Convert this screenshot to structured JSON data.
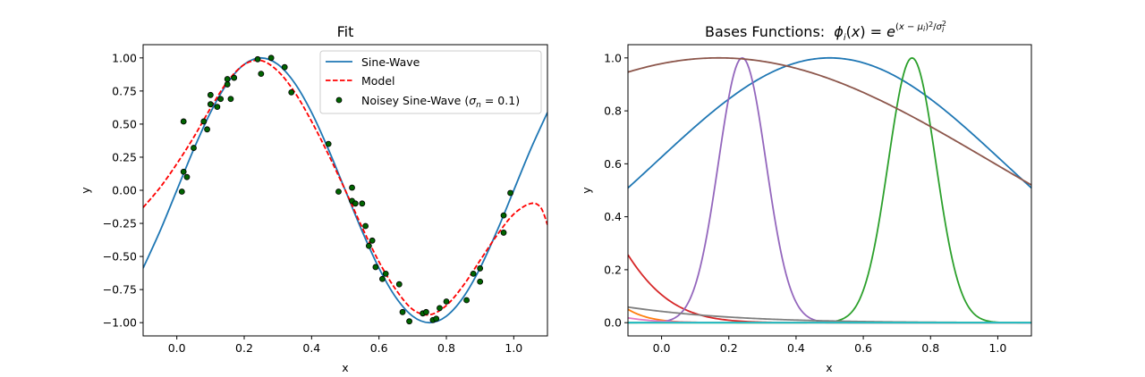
{
  "chart_data": [
    {
      "type": "line",
      "title": "Fit",
      "xlabel": "x",
      "ylabel": "y",
      "xlim": [
        -0.1,
        1.1
      ],
      "ylim": [
        -1.1,
        1.1
      ],
      "xticks": [
        0.0,
        0.2,
        0.4,
        0.6,
        0.8,
        1.0
      ],
      "xtick_labels": [
        "0.0",
        "0.2",
        "0.4",
        "0.6",
        "0.8",
        "1.0"
      ],
      "yticks": [
        -1.0,
        -0.75,
        -0.5,
        -0.25,
        0.0,
        0.25,
        0.5,
        0.75,
        1.0
      ],
      "ytick_labels": [
        "−1.00",
        "−0.75",
        "−0.50",
        "−0.25",
        "0.00",
        "0.25",
        "0.50",
        "0.75",
        "1.00"
      ],
      "legend_position": "top-right",
      "grid": false,
      "series": [
        {
          "name": "Sine-Wave",
          "kind": "line",
          "color": "#1f77b4",
          "x": [
            -0.1,
            -0.05,
            0.0,
            0.05,
            0.1,
            0.15,
            0.2,
            0.25,
            0.3,
            0.35,
            0.4,
            0.45,
            0.5,
            0.55,
            0.6,
            0.65,
            0.7,
            0.75,
            0.8,
            0.85,
            0.9,
            0.95,
            1.0,
            1.05,
            1.1
          ],
          "y": [
            -0.588,
            -0.309,
            0.0,
            0.309,
            0.588,
            0.809,
            0.951,
            1.0,
            0.951,
            0.809,
            0.588,
            0.309,
            0.0,
            -0.309,
            -0.588,
            -0.809,
            -0.951,
            -1.0,
            -0.951,
            -0.809,
            -0.588,
            -0.309,
            0.0,
            0.309,
            0.588
          ]
        },
        {
          "name": "Model",
          "kind": "dashed-line",
          "color": "#ff0000",
          "x": [
            -0.1,
            -0.05,
            0.0,
            0.05,
            0.1,
            0.15,
            0.2,
            0.25,
            0.3,
            0.35,
            0.4,
            0.45,
            0.5,
            0.55,
            0.6,
            0.65,
            0.7,
            0.75,
            0.8,
            0.85,
            0.9,
            0.95,
            1.0,
            1.05,
            1.08,
            1.1
          ],
          "y": [
            -0.13,
            0.02,
            0.2,
            0.4,
            0.62,
            0.82,
            0.95,
            0.98,
            0.9,
            0.74,
            0.52,
            0.27,
            0.0,
            -0.28,
            -0.54,
            -0.75,
            -0.9,
            -0.94,
            -0.87,
            -0.72,
            -0.53,
            -0.34,
            -0.18,
            -0.1,
            -0.13,
            -0.26
          ]
        },
        {
          "name": "Noisey Sine-Wave (σ_n = 0.1)",
          "kind": "scatter",
          "color": "#006400",
          "edgecolor": "#000000",
          "x": [
            0.015,
            0.02,
            0.02,
            0.03,
            0.05,
            0.08,
            0.09,
            0.1,
            0.1,
            0.12,
            0.13,
            0.15,
            0.15,
            0.16,
            0.17,
            0.24,
            0.25,
            0.28,
            0.32,
            0.34,
            0.45,
            0.48,
            0.52,
            0.52,
            0.53,
            0.55,
            0.56,
            0.57,
            0.58,
            0.59,
            0.61,
            0.62,
            0.66,
            0.67,
            0.69,
            0.73,
            0.74,
            0.76,
            0.77,
            0.78,
            0.8,
            0.86,
            0.88,
            0.9,
            0.9,
            0.97,
            0.97,
            0.99
          ],
          "y": [
            -0.01,
            0.52,
            0.14,
            0.1,
            0.32,
            0.52,
            0.46,
            0.72,
            0.65,
            0.63,
            0.69,
            0.8,
            0.84,
            0.69,
            0.85,
            0.99,
            0.88,
            1.0,
            0.93,
            0.74,
            0.35,
            -0.01,
            -0.08,
            0.02,
            -0.1,
            -0.1,
            -0.27,
            -0.42,
            -0.38,
            -0.58,
            -0.67,
            -0.63,
            -0.71,
            -0.92,
            -0.99,
            -0.93,
            -0.92,
            -0.98,
            -0.97,
            -0.89,
            -0.84,
            -0.83,
            -0.63,
            -0.59,
            -0.69,
            -0.19,
            -0.32,
            -0.02
          ]
        }
      ]
    },
    {
      "type": "line",
      "title": "Bases Functions:",
      "formula": {
        "phi": "ϕ",
        "i": "i",
        "x": "(x) = e",
        "exp": "(x − μ",
        "exp_i": "i",
        "exp2": ")",
        "exp_sq": "2",
        "exp3": "/σ",
        "exp_sq2": "2",
        "exp_i2": "i"
      },
      "xlabel": "x",
      "ylabel": "y",
      "xlim": [
        -0.1,
        1.1
      ],
      "ylim": [
        -0.05,
        1.05
      ],
      "xticks": [
        0.0,
        0.2,
        0.4,
        0.6,
        0.8,
        1.0
      ],
      "xtick_labels": [
        "0.0",
        "0.2",
        "0.4",
        "0.6",
        "0.8",
        "1.0"
      ],
      "yticks": [
        0.0,
        0.2,
        0.4,
        0.6,
        0.8,
        1.0
      ],
      "ytick_labels": [
        "0.0",
        "0.2",
        "0.4",
        "0.6",
        "0.8",
        "1.0"
      ],
      "grid": false,
      "series": [
        {
          "color": "#1f77b4",
          "mu": 0.5,
          "sigma": 0.73
        },
        {
          "color": "#ff7f0e",
          "mu": -0.5,
          "sigma": 0.2315
        },
        {
          "color": "#2ca02c",
          "mu": 0.745,
          "sigma": 0.1
        },
        {
          "color": "#d62728",
          "mu": -0.45,
          "sigma": 0.3
        },
        {
          "color": "#9467bd",
          "mu": 0.24,
          "sigma": 0.1
        },
        {
          "color": "#8c564b",
          "mu": 0.17,
          "sigma": 1.15
        },
        {
          "color": "#e377c2",
          "mu": -0.8,
          "sigma": 0.3497
        },
        {
          "color": "#7f7f7f",
          "mu": -1.9,
          "sigma": 1.0695
        },
        {
          "color": "#bcbd22",
          "mu": 1.25,
          "sigma": 0.0565
        },
        {
          "color": "#17becf",
          "mu": 3.0,
          "sigma": 0.1
        }
      ]
    }
  ]
}
